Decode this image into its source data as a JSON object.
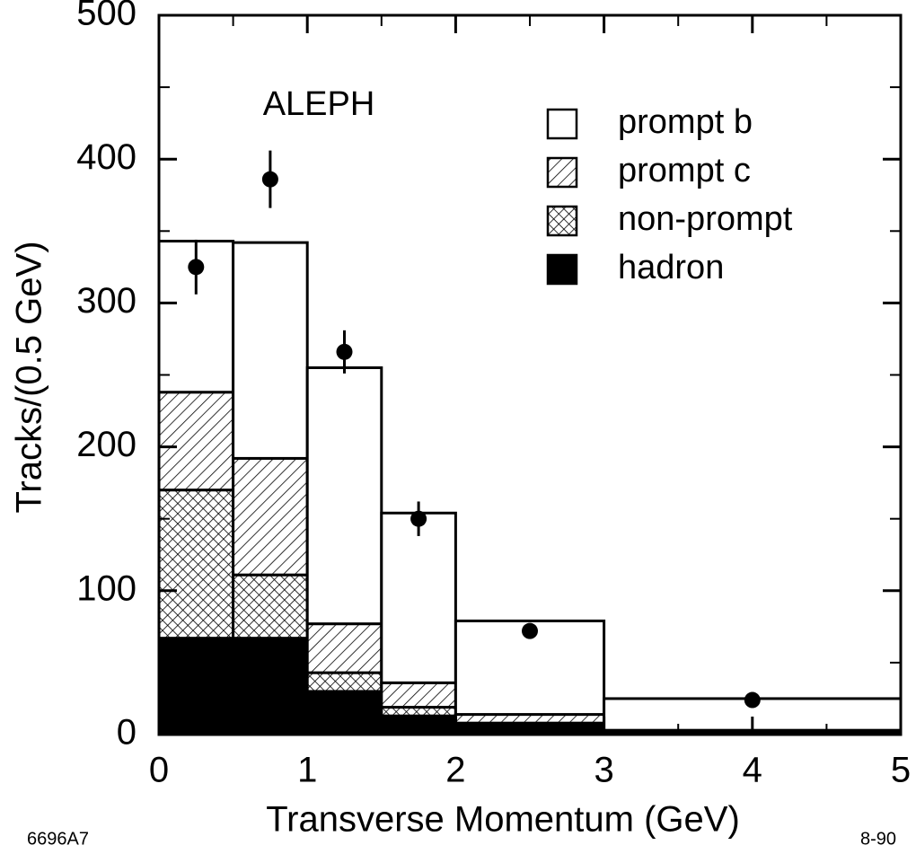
{
  "chart_data": {
    "type": "histogram",
    "annotation": "ALEPH",
    "xlabel": "Transverse Momentum    (GeV)",
    "ylabel": "Tracks/(0.5 GeV)",
    "figure_id": "6696A7",
    "date_code": "8-90",
    "bins": [
      0,
      0.5,
      1,
      1.5,
      2,
      3,
      5
    ],
    "series": [
      {
        "name": "hadron",
        "color": "#000000",
        "fill": "solid",
        "values": [
          67,
          67,
          30,
          13,
          7,
          2
        ]
      },
      {
        "name": "non-prompt",
        "color": "#000000",
        "fill": "crosshatch",
        "values": [
          103,
          44,
          13,
          6,
          1,
          0
        ]
      },
      {
        "name": "prompt c",
        "color": "#000000",
        "fill": "hatch",
        "values": [
          68,
          81,
          34,
          17,
          6,
          1
        ]
      },
      {
        "name": "prompt b",
        "color": "#ffffff",
        "fill": "solid",
        "values": [
          105,
          150,
          178,
          118,
          65,
          22
        ]
      }
    ],
    "legend_order": [
      3,
      2,
      1,
      0
    ],
    "points": {
      "x": [
        0.25,
        0.75,
        1.25,
        1.75,
        2.5,
        4
      ],
      "values": [
        325,
        386,
        266,
        150,
        72,
        24
      ],
      "errors": [
        19,
        20,
        15,
        12,
        4,
        4
      ],
      "color": "#000000"
    },
    "xlim": [
      0,
      5
    ],
    "ylim": [
      0,
      500
    ],
    "xticks": [
      0,
      1,
      2,
      3,
      4,
      5
    ],
    "yticks": [
      0,
      100,
      200,
      300,
      400,
      500
    ],
    "xminorticks": [
      0.5,
      1.5,
      2.5,
      3.5,
      4.5
    ],
    "yminorticks": [
      50,
      150,
      250,
      350,
      450
    ]
  }
}
